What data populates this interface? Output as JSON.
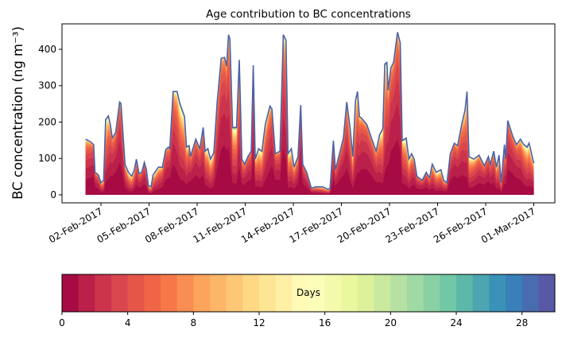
{
  "chart_data": {
    "type": "area",
    "stacked": true,
    "title": "Age contribution to BC concentrations",
    "ylabel": "BC concentration (ng m⁻³)",
    "xlabel": "",
    "ylim": [
      -22,
      470
    ],
    "xlim": [
      "2017-01-30 13:40",
      "2017-03-02 07:30"
    ],
    "yticks": [
      0,
      100,
      200,
      300,
      400
    ],
    "xticks": [
      "2017-02-02",
      "2017-02-05",
      "2017-02-08",
      "2017-02-11",
      "2017-02-14",
      "2017-02-17",
      "2017-02-20",
      "2017-02-23",
      "2017-02-26",
      "2017-03-01"
    ],
    "xtick_labels": [
      "02-Feb-2017",
      "05-Feb-2017",
      "08-Feb-2017",
      "11-Feb-2017",
      "14-Feb-2017",
      "17-Feb-2017",
      "20-Feb-2017",
      "23-Feb-2017",
      "26-Feb-2017",
      "01-Mar-2017"
    ],
    "grid": false,
    "colormap": "Spectral",
    "total_line_color": "#4a62a8",
    "colorbar": {
      "label": "Days",
      "range": [
        0,
        30
      ],
      "bins": 30,
      "ticks": [
        0,
        4,
        8,
        12,
        16,
        20,
        24,
        28
      ],
      "orientation": "horizontal",
      "placement": "bottom"
    },
    "total": {
      "x": [
        "2017-02-01 01:00",
        "2017-02-01 09:00",
        "2017-02-01 13:00",
        "2017-02-01 15:00",
        "2017-02-01 20:00",
        "2017-02-02 00:00",
        "2017-02-02 04:00",
        "2017-02-02 07:00",
        "2017-02-02 11:00",
        "2017-02-02 14:00",
        "2017-02-02 17:00",
        "2017-02-02 22:00",
        "2017-02-03 04:00",
        "2017-02-03 06:00",
        "2017-02-03 12:00",
        "2017-02-03 17:00",
        "2017-02-03 22:00",
        "2017-02-04 02:00",
        "2017-02-04 05:00",
        "2017-02-04 09:00",
        "2017-02-04 13:00",
        "2017-02-04 17:00",
        "2017-02-04 20:00",
        "2017-02-04 23:00",
        "2017-02-05 03:00",
        "2017-02-05 06:00",
        "2017-02-05 14:00",
        "2017-02-05 20:00",
        "2017-02-06 01:00",
        "2017-02-06 05:00",
        "2017-02-06 07:00",
        "2017-02-06 12:00",
        "2017-02-06 18:00",
        "2017-02-06 22:00",
        "2017-02-07 05:00",
        "2017-02-07 08:00",
        "2017-02-07 12:00",
        "2017-02-07 14:00",
        "2017-02-07 22:00",
        "2017-02-08 04:00",
        "2017-02-08 09:00",
        "2017-02-08 12:00",
        "2017-02-08 16:00",
        "2017-02-08 20:00",
        "2017-02-09 01:00",
        "2017-02-09 06:00",
        "2017-02-09 12:00",
        "2017-02-09 17:00",
        "2017-02-09 20:00",
        "2017-02-09 23:00",
        "2017-02-10 01:00",
        "2017-02-10 05:00",
        "2017-02-10 11:00",
        "2017-02-10 15:00",
        "2017-02-10 19:00",
        "2017-02-10 23:00",
        "2017-02-11 04:00",
        "2017-02-11 09:00",
        "2017-02-11 12:00",
        "2017-02-11 15:00",
        "2017-02-11 20:00",
        "2017-02-12 01:00",
        "2017-02-12 06:00",
        "2017-02-12 13:00",
        "2017-02-12 16:00",
        "2017-02-12 21:00",
        "2017-02-13 04:00",
        "2017-02-13 09:00",
        "2017-02-13 13:00",
        "2017-02-13 16:00",
        "2017-02-13 21:00",
        "2017-02-14 01:00",
        "2017-02-14 07:00",
        "2017-02-14 11:00",
        "2017-02-14 14:00",
        "2017-02-14 20:00",
        "2017-02-15 03:00",
        "2017-02-15 09:00",
        "2017-02-15 20:00",
        "2017-02-16 04:00",
        "2017-02-16 07:00",
        "2017-02-16 12:00",
        "2017-02-16 15:00",
        "2017-02-16 20:00",
        "2017-02-17 03:00",
        "2017-02-17 08:00",
        "2017-02-17 13:00",
        "2017-02-17 17:00",
        "2017-02-17 21:00",
        "2017-02-18 00:00",
        "2017-02-18 03:00",
        "2017-02-18 06:00",
        "2017-02-18 14:00",
        "2017-02-18 21:00",
        "2017-02-19 04:00",
        "2017-02-19 09:00",
        "2017-02-19 14:00",
        "2017-02-19 17:00",
        "2017-02-19 20:00",
        "2017-02-19 22:00",
        "2017-02-20 02:00",
        "2017-02-20 06:00",
        "2017-02-20 12:00",
        "2017-02-20 16:00",
        "2017-02-20 19:00",
        "2017-02-21 01:00",
        "2017-02-21 05:00",
        "2017-02-21 09:00",
        "2017-02-21 13:00",
        "2017-02-21 17:00",
        "2017-02-22 01:00",
        "2017-02-22 07:00",
        "2017-02-22 12:00",
        "2017-02-22 16:00",
        "2017-02-22 22:00",
        "2017-02-23 05:00",
        "2017-02-23 09:00",
        "2017-02-23 14:00",
        "2017-02-23 19:00",
        "2017-02-24 01:00",
        "2017-02-24 06:00",
        "2017-02-24 12:00",
        "2017-02-24 17:00",
        "2017-02-24 20:00",
        "2017-02-24 23:00",
        "2017-02-25 06:00",
        "2017-02-25 14:00",
        "2017-02-25 22:00",
        "2017-02-26 04:00",
        "2017-02-26 07:00",
        "2017-02-26 12:00",
        "2017-02-26 16:00",
        "2017-02-26 20:00",
        "2017-02-26 23:00",
        "2017-02-27 04:00",
        "2017-02-27 06:00",
        "2017-02-27 09:00",
        "2017-02-27 16:00",
        "2017-02-27 22:00",
        "2017-02-28 04:00",
        "2017-02-28 09:00",
        "2017-02-28 14:00",
        "2017-02-28 17:00",
        "2017-03-01 00:00"
      ],
      "y": [
        153,
        145,
        138,
        62,
        55,
        33,
        40,
        207,
        217,
        193,
        156,
        171,
        255,
        251,
        84,
        62,
        51,
        69,
        98,
        58,
        62,
        89,
        69,
        25,
        22,
        55,
        76,
        76,
        124,
        131,
        127,
        284,
        284,
        251,
        215,
        131,
        135,
        105,
        153,
        127,
        185,
        120,
        127,
        98,
        116,
        255,
        375,
        378,
        353,
        440,
        429,
        185,
        185,
        371,
        98,
        84,
        105,
        120,
        356,
        98,
        127,
        120,
        193,
        244,
        236,
        113,
        120,
        440,
        425,
        113,
        127,
        76,
        105,
        247,
        84,
        62,
        18,
        22,
        22,
        15,
        18,
        149,
        69,
        105,
        156,
        255,
        185,
        105,
        258,
        284,
        215,
        211,
        193,
        156,
        120,
        164,
        182,
        360,
        364,
        287,
        349,
        364,
        447,
        418,
        149,
        156,
        98,
        113,
        98,
        51,
        40,
        62,
        47,
        84,
        62,
        69,
        40,
        33,
        113,
        142,
        135,
        193,
        233,
        284,
        105,
        98,
        109,
        80,
        105,
        84,
        120,
        76,
        109,
        33,
        138,
        98,
        204,
        164,
        138,
        153,
        138,
        131,
        142,
        87
      ]
    }
  }
}
